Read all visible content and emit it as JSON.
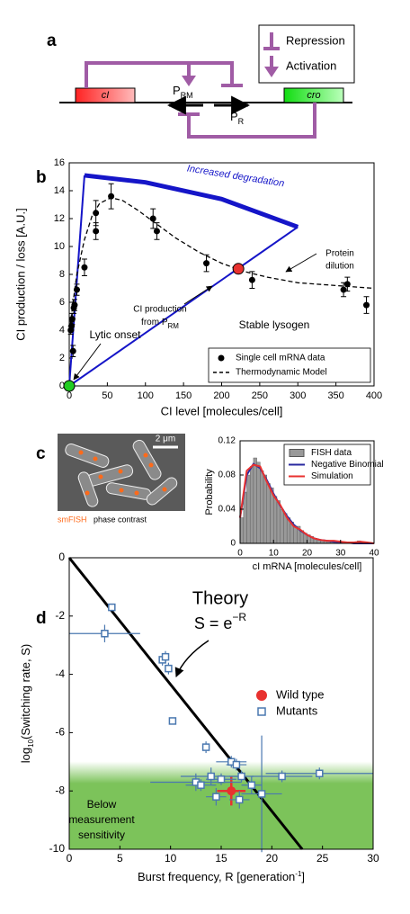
{
  "panel_labels": [
    "a",
    "b",
    "c",
    "d"
  ],
  "diagram": {
    "gene_left": "cI",
    "gene_right": "cro",
    "promoter_left": {
      "main": "P",
      "sub": "RM"
    },
    "promoter_right": {
      "main": "P",
      "sub": "R"
    },
    "legend": [
      "Repression",
      "Activation"
    ]
  },
  "image": {
    "scale_bar": "2 μm",
    "caption": [
      "smFISH",
      "phase contrast"
    ]
  },
  "chart_data": [
    {
      "type": "scatter",
      "xlabel": "CI level [molecules/cell]",
      "ylabel": "CI production / loss [A.U.]",
      "xlim": [
        0,
        400
      ],
      "ylim": [
        0,
        16
      ],
      "xticks": [
        0,
        50,
        100,
        150,
        200,
        250,
        300,
        350,
        400
      ],
      "yticks": [
        0,
        2,
        4,
        6,
        8,
        10,
        12,
        14,
        16
      ],
      "legend_loc": "lower right",
      "legend_frame": true,
      "series": [
        {
          "name": "Single cell mRNA data",
          "type": "errorbar",
          "color": "#000000",
          "x": [
            2,
            3,
            4,
            5,
            6,
            7,
            10,
            20,
            35,
            35,
            55,
            110,
            115,
            180,
            240,
            360,
            365,
            390
          ],
          "values": [
            4.0,
            4.3,
            4.8,
            2.5,
            5.6,
            5.8,
            6.9,
            8.5,
            11.1,
            12.4,
            13.6,
            12.0,
            11.1,
            8.8,
            7.6,
            6.9,
            7.3,
            5.8
          ],
          "errors": [
            0.3,
            0.3,
            0.4,
            0.4,
            0.4,
            0.4,
            0.4,
            0.6,
            0.6,
            0.9,
            0.9,
            0.7,
            0.6,
            0.6,
            0.6,
            0.5,
            0.5,
            0.6
          ]
        },
        {
          "name": "Thermodynamic Model",
          "type": "dashed-line",
          "color": "#000000",
          "x": [
            0,
            5,
            10,
            20,
            30,
            40,
            55,
            70,
            90,
            110,
            140,
            170,
            200,
            230,
            260,
            300,
            350,
            400
          ],
          "values": [
            3.8,
            6.0,
            8.0,
            10.5,
            12.2,
            13.1,
            13.5,
            13.3,
            12.6,
            11.8,
            10.6,
            9.6,
            8.8,
            8.2,
            7.8,
            7.4,
            7.2,
            7.0
          ]
        }
      ],
      "curves": [
        {
          "color": "#1515c8",
          "width": 2,
          "x": [
            0,
            20
          ],
          "values": [
            0,
            15.1
          ]
        },
        {
          "color": "#1515c8",
          "width": 2,
          "x": [
            0,
            300
          ],
          "values": [
            0,
            11.4
          ]
        },
        {
          "color": "#1515c8",
          "width": 5,
          "x": [
            20,
            100,
            200,
            300
          ],
          "values": [
            15.1,
            14.6,
            13.4,
            11.4
          ]
        }
      ],
      "points": [
        {
          "x": 222,
          "value": 8.4,
          "color": "#e8312f"
        },
        {
          "x": 0,
          "value": 0,
          "color": "#22cc22"
        }
      ],
      "annotations": {
        "degradation": "Increased degradation",
        "production": [
          "CI production",
          "from P"
        ],
        "production_sub": "RM",
        "dilution": [
          "Protein",
          "dilution"
        ],
        "lysogen": "Stable lysogen",
        "onset": "Lytic onset"
      }
    },
    {
      "type": "histogram",
      "xlabel": "cI mRNA [molecules/cell]",
      "ylabel": "Probability",
      "xlim": [
        0,
        40
      ],
      "ylim": [
        0,
        0.12
      ],
      "xticks": [
        0,
        10,
        20,
        30,
        40
      ],
      "yticks": [
        0,
        0.04,
        0.08,
        0.12
      ],
      "legend_loc": "upper right",
      "legend_frame": true,
      "bins": [
        0,
        1,
        2,
        3,
        4,
        5,
        6,
        7,
        8,
        9,
        10,
        11,
        12,
        13,
        14,
        15,
        16,
        17,
        18,
        19,
        20,
        21,
        22,
        23,
        24,
        25,
        26,
        27,
        28,
        29,
        30,
        31,
        32,
        33,
        34,
        35,
        36,
        37,
        38,
        39,
        40
      ],
      "series": [
        {
          "name": "FISH data",
          "type": "histogram",
          "color": "#999999",
          "values": [
            0.03,
            0.06,
            0.08,
            0.09,
            0.1,
            0.095,
            0.085,
            0.08,
            0.07,
            0.065,
            0.055,
            0.05,
            0.04,
            0.035,
            0.03,
            0.025,
            0.02,
            0.02,
            0.015,
            0.012,
            0.01,
            0.008,
            0.006,
            0.005,
            0.004,
            0.003,
            0.003,
            0.002,
            0.002,
            0.001,
            0.001,
            0.001,
            0.001,
            0,
            0,
            0.003,
            0.001,
            0,
            0,
            0
          ]
        },
        {
          "name": "Negative Binomial",
          "type": "line",
          "color": "#2a2aa0",
          "x": [
            0,
            2,
            4,
            6,
            8,
            10,
            12,
            14,
            16,
            18,
            20,
            22,
            24,
            26,
            28,
            30,
            32,
            34,
            36,
            38,
            40
          ],
          "values": [
            0.03,
            0.08,
            0.093,
            0.088,
            0.074,
            0.058,
            0.044,
            0.032,
            0.022,
            0.015,
            0.01,
            0.006,
            0.004,
            0.003,
            0.002,
            0.001,
            0.001,
            0,
            0,
            0,
            0
          ]
        },
        {
          "name": "Simulation",
          "type": "line",
          "color": "#e8312f",
          "x": [
            0,
            2,
            4,
            6,
            8,
            10,
            12,
            14,
            16,
            18,
            20,
            22,
            24,
            26,
            28,
            30,
            32,
            34,
            36,
            38,
            40
          ],
          "values": [
            0.03,
            0.085,
            0.092,
            0.09,
            0.072,
            0.056,
            0.045,
            0.03,
            0.02,
            0.016,
            0.01,
            0.006,
            0.004,
            0.003,
            0.003,
            0.002,
            0.001,
            0.001,
            0.002,
            0.001,
            0
          ]
        }
      ]
    },
    {
      "type": "scatter",
      "xlabel": {
        "pre": "Burst frequency, R [generation",
        "sup": "-1",
        "post": "]"
      },
      "ylabel": {
        "pre": "log",
        "sub": "10",
        "post": "(Switching rate, S)"
      },
      "xlim": [
        0,
        30
      ],
      "ylim": [
        -10,
        0
      ],
      "xticks": [
        0,
        5,
        10,
        15,
        20,
        25,
        30
      ],
      "yticks": [
        -10,
        -8,
        -6,
        -4,
        -2,
        0
      ],
      "legend_loc": "center right",
      "legend_frame": false,
      "band": {
        "ylim": [
          -10,
          -7.3
        ],
        "color": "#7cc35a",
        "label": [
          "Below",
          "measurement",
          "sensitivity"
        ]
      },
      "theory": {
        "x": [
          0,
          23
        ],
        "values": [
          0,
          -10
        ],
        "color": "#000000"
      },
      "theory_label": "Theory",
      "theory_formula": {
        "pre": "S = e",
        "sup": "−R"
      },
      "series": [
        {
          "name": "Wild type",
          "marker": "circle",
          "color": "#e8312f",
          "x": [
            16
          ],
          "values": [
            -8
          ],
          "xerr": [
            1.4
          ],
          "yerr": [
            0.5
          ]
        },
        {
          "name": "Mutants",
          "marker": "square",
          "color": "#4a78b0",
          "x": [
            3.5,
            4.2,
            9.2,
            9.5,
            9.8,
            10.2,
            13.5,
            16,
            16.5,
            12.5,
            14,
            15,
            17,
            18,
            19,
            21,
            24.7,
            16.8,
            13,
            14.5
          ],
          "values": [
            -2.6,
            -1.7,
            -3.5,
            -3.4,
            -3.8,
            -5.6,
            -6.5,
            -7.0,
            -7.1,
            -7.7,
            -7.5,
            -7.6,
            -7.5,
            -7.8,
            -8.1,
            -7.5,
            -7.4,
            -8.3,
            -7.8,
            -8.2
          ],
          "xerr": [
            3.5,
            0.2,
            0.3,
            0.3,
            0.3,
            0.2,
            0.3,
            1.5,
            1.0,
            4.5,
            3,
            1.5,
            1.2,
            1,
            2,
            3,
            5.3,
            1,
            1.5,
            1
          ],
          "yerr": [
            0.3,
            0.1,
            0.2,
            0.2,
            0.2,
            0.1,
            0.2,
            0.2,
            0.2,
            0.3,
            0.3,
            0.2,
            0.2,
            0.3,
            2,
            0.2,
            0.2,
            0.3,
            0.2,
            0.3
          ]
        }
      ]
    }
  ]
}
